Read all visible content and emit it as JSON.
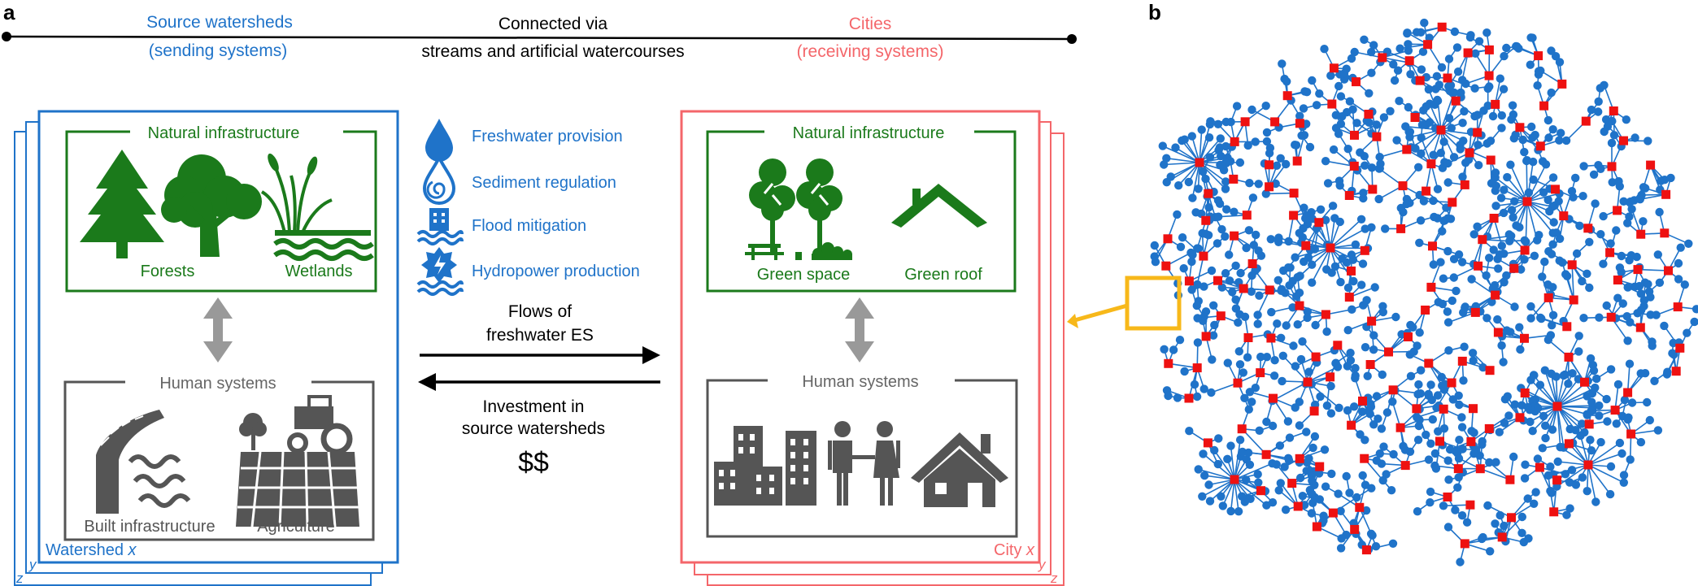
{
  "panels": {
    "a": "a",
    "b": "b"
  },
  "colors": {
    "blue": "#1f73c9",
    "red": "#f4666a",
    "green": "#1b7a1b",
    "gray": "#555555",
    "black": "#000000",
    "yellow": "#f7b81a",
    "node_red": "#ee1111"
  },
  "header": {
    "source_line1": "Source watersheds",
    "source_line2": "(sending systems)",
    "connect_line1": "Connected via",
    "connect_line2": "streams and artificial watercourses",
    "cities_line1": "Cities",
    "cities_line2": "(receiving systems)"
  },
  "watershed": {
    "natural_title": "Natural infrastructure",
    "forests": "Forests",
    "wetlands": "Wetlands",
    "human_title": "Human systems",
    "built": "Built infrastructure",
    "agriculture": "Agriculture",
    "label": "Watershed ",
    "label_var": "x",
    "stack_y": "y",
    "stack_z": "z"
  },
  "services": [
    {
      "label": "Freshwater provision",
      "icon": "water-drop-icon"
    },
    {
      "label": "Sediment regulation",
      "icon": "sediment-drop-icon"
    },
    {
      "label": "Flood mitigation",
      "icon": "flood-icon"
    },
    {
      "label": "Hydropower production",
      "icon": "hydropower-icon"
    }
  ],
  "flows": {
    "flows_line1": "Flows of",
    "flows_line2": "freshwater ES",
    "invest_line1": "Investment in",
    "invest_line2": "source watersheds",
    "money": "$$"
  },
  "city": {
    "natural_title": "Natural infrastructure",
    "green_space": "Green space",
    "green_roof": "Green roof",
    "human_title": "Human systems",
    "label": "City ",
    "label_var": "x",
    "stack_y": "y",
    "stack_z": "z"
  }
}
